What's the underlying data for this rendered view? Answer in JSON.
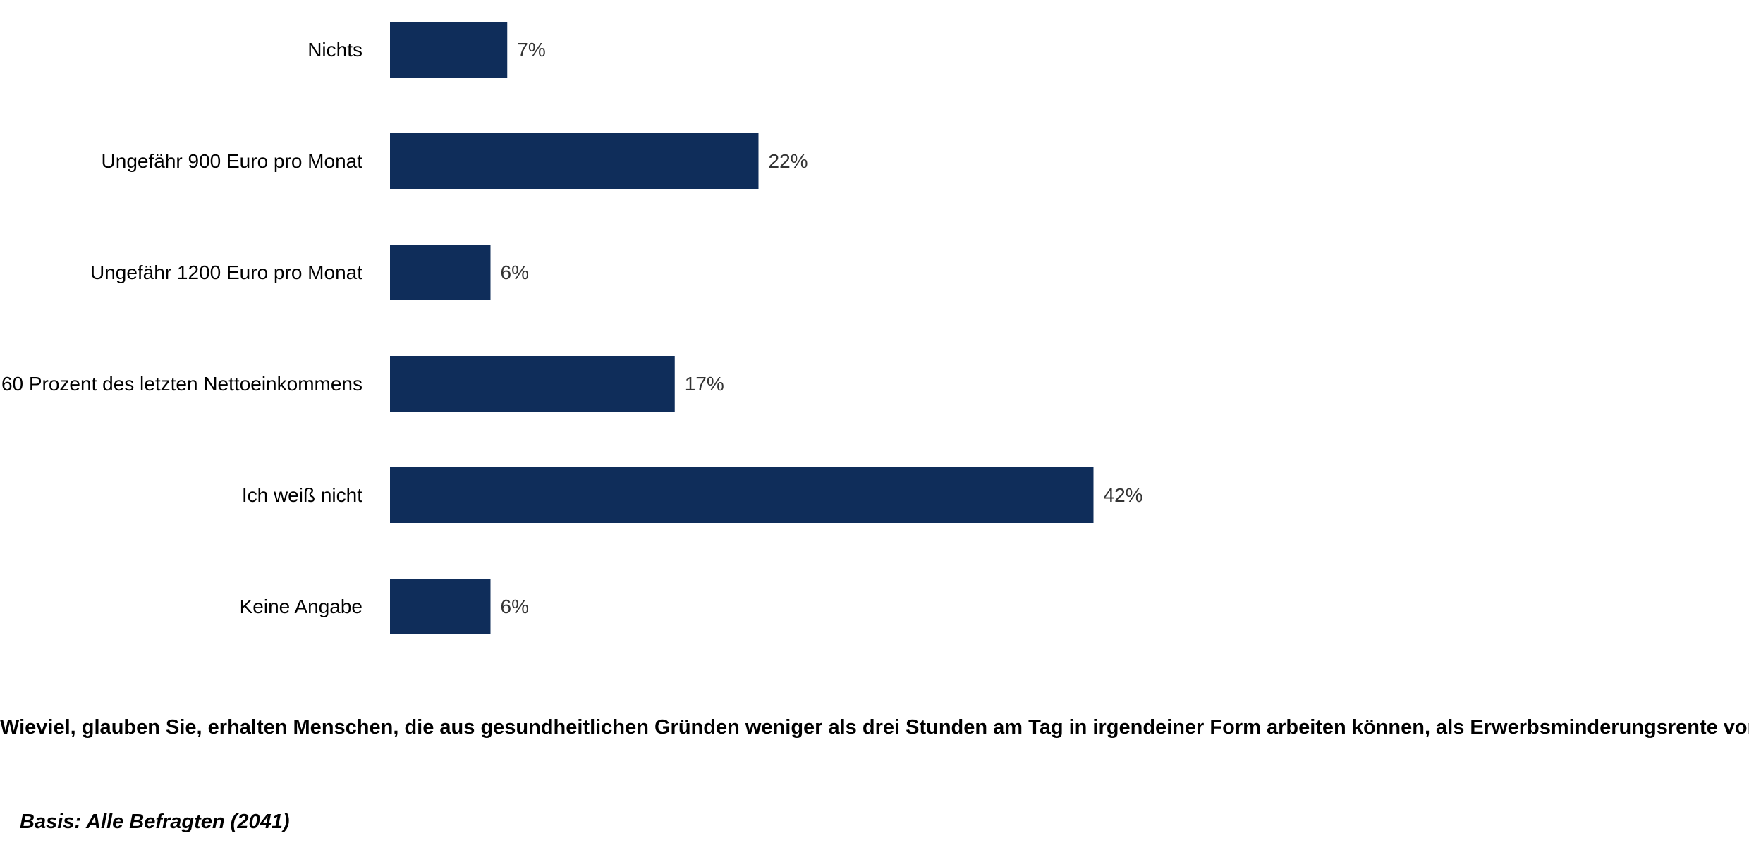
{
  "chart_data": {
    "type": "bar",
    "orientation": "horizontal",
    "categories": [
      "Nichts",
      "Ungefähr 900 Euro pro Monat",
      "Ungefähr 1200 Euro pro Monat",
      "60 Prozent des letzten Nettoeinkommens",
      "Ich weiß nicht",
      "Keine Angabe"
    ],
    "values": [
      7,
      22,
      6,
      17,
      42,
      6
    ],
    "value_labels": [
      "7%",
      "22%",
      "6%",
      "17%",
      "42%",
      "6%"
    ],
    "unit": "%",
    "bar_color": "#0f2d5a",
    "xlim": [
      0,
      100
    ],
    "grid": false,
    "legend": "none"
  },
  "question": "Wieviel, glauben Sie, erhalten Menschen, die aus gesundheitlichen Gründen weniger als drei Stunden am Tag in irgendeiner Form arbeiten können, als Erwerbsminderungsrente vom Staat?",
  "basis": "Basis: Alle Befragten (2041)"
}
